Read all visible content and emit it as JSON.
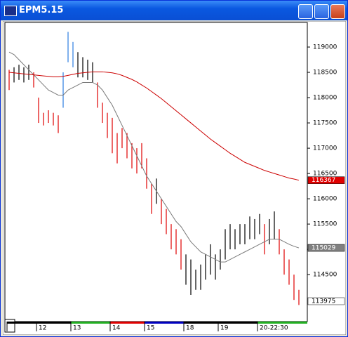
{
  "window_title": "EPM5.15",
  "chart_data": {
    "type": "ohlc",
    "high": [
      118550,
      118600,
      118650,
      118600,
      118650,
      118500,
      118000,
      117700,
      117750,
      117700,
      117650,
      118500,
      119300,
      119100,
      118900,
      118800,
      118750,
      118700,
      118300,
      117900,
      117700,
      117600,
      117300,
      117400,
      117300,
      117100,
      117000,
      117100,
      116800,
      116300,
      116400,
      116000,
      115800,
      115500,
      115400,
      115200,
      114900,
      114800,
      114600,
      114700,
      114900,
      115100,
      114900,
      115000,
      115400,
      115500,
      115400,
      115500,
      115500,
      115650,
      115600,
      115700,
      115500,
      115600,
      115750,
      115400,
      115000,
      114800,
      114500,
      114200
    ],
    "low": [
      118150,
      118300,
      118350,
      118300,
      118350,
      118200,
      117500,
      117450,
      117500,
      117450,
      117300,
      117800,
      118700,
      118600,
      118400,
      118400,
      118350,
      118300,
      117800,
      117500,
      117200,
      116900,
      116700,
      117000,
      116800,
      116600,
      116500,
      116600,
      116200,
      115700,
      115900,
      115500,
      115300,
      115000,
      114900,
      114600,
      114300,
      114100,
      114200,
      114200,
      114400,
      114500,
      114400,
      114600,
      114800,
      115000,
      115000,
      115100,
      115100,
      115200,
      115200,
      115300,
      114900,
      115100,
      115200,
      114900,
      114500,
      114300,
      114000,
      113900
    ],
    "bar_colors": [
      "#e00000",
      "#000000",
      "#000000",
      "#000000",
      "#000000",
      "#e00000",
      "#e00000",
      "#e00000",
      "#e00000",
      "#e00000",
      "#e00000",
      "#2a7de1",
      "#2a7de1",
      "#2a7de1",
      "#000000",
      "#000000",
      "#000000",
      "#000000",
      "#e00000",
      "#e00000",
      "#e00000",
      "#e00000",
      "#e00000",
      "#e00000",
      "#e00000",
      "#e00000",
      "#e00000",
      "#e00000",
      "#e00000",
      "#e00000",
      "#000000",
      "#e00000",
      "#e00000",
      "#e00000",
      "#e00000",
      "#e00000",
      "#000000",
      "#000000",
      "#000000",
      "#000000",
      "#000000",
      "#000000",
      "#000000",
      "#000000",
      "#000000",
      "#000000",
      "#000000",
      "#000000",
      "#000000",
      "#000000",
      "#000000",
      "#000000",
      "#e00000",
      "#000000",
      "#000000",
      "#e00000",
      "#e00000",
      "#e00000",
      "#e00000",
      "#e00000"
    ],
    "series": [
      {
        "color": "#7a7a7a",
        "values": [
          118900,
          118850,
          118750,
          118650,
          118550,
          118450,
          118350,
          118250,
          118150,
          118100,
          118050,
          118050,
          118150,
          118200,
          118250,
          118300,
          118300,
          118300,
          118250,
          118150,
          118000,
          117850,
          117650,
          117450,
          117250,
          117050,
          116850,
          116650,
          116450,
          116300,
          116150,
          116000,
          115850,
          115700,
          115550,
          115450,
          115300,
          115150,
          115050,
          114950,
          114900,
          114850,
          114800,
          114750,
          114750,
          114800,
          114850,
          114900,
          114950,
          115000,
          115050,
          115100,
          115150,
          115200,
          115200,
          115200,
          115150,
          115100,
          115060,
          115029
        ]
      },
      {
        "color": "#cc0000",
        "values": [
          118500,
          118490,
          118480,
          118470,
          118460,
          118450,
          118440,
          118430,
          118420,
          118410,
          118410,
          118420,
          118440,
          118460,
          118480,
          118490,
          118500,
          118510,
          118510,
          118510,
          118500,
          118490,
          118470,
          118440,
          118400,
          118360,
          118310,
          118250,
          118190,
          118120,
          118050,
          117980,
          117900,
          117820,
          117740,
          117660,
          117580,
          117500,
          117420,
          117340,
          117260,
          117180,
          117110,
          117040,
          116970,
          116900,
          116840,
          116780,
          116720,
          116680,
          116640,
          116600,
          116560,
          116530,
          116500,
          116470,
          116440,
          116410,
          116390,
          116367
        ]
      }
    ],
    "ylim": [
      113600,
      119500
    ],
    "yticks": [
      119000,
      118500,
      118000,
      117500,
      117000,
      116500,
      116000,
      115500,
      115000,
      114500
    ],
    "price_markers": [
      {
        "value": 116367,
        "color": "#e00000",
        "text_color": "#ffffff"
      },
      {
        "value": 115029,
        "color": "#808080",
        "text_color": "#ffffff"
      },
      {
        "value": 113975,
        "color": "#ffffff",
        "text_color": "#000000"
      }
    ],
    "sessions": [
      {
        "label": null,
        "start": 0,
        "color": "#000000"
      },
      {
        "label": "12",
        "start": 6,
        "color": "#000000"
      },
      {
        "label": "13",
        "start": 13,
        "color": "#22b022"
      },
      {
        "label": "14",
        "start": 21,
        "color": "#e00000"
      },
      {
        "label": "15",
        "start": 28,
        "color": "#0000c0"
      },
      {
        "label": "18",
        "start": 36,
        "color": "#000000"
      },
      {
        "label": "19",
        "start": 43,
        "color": "#000000"
      },
      {
        "label": "20-22:30",
        "start": 51,
        "color": "#22b022"
      }
    ]
  }
}
